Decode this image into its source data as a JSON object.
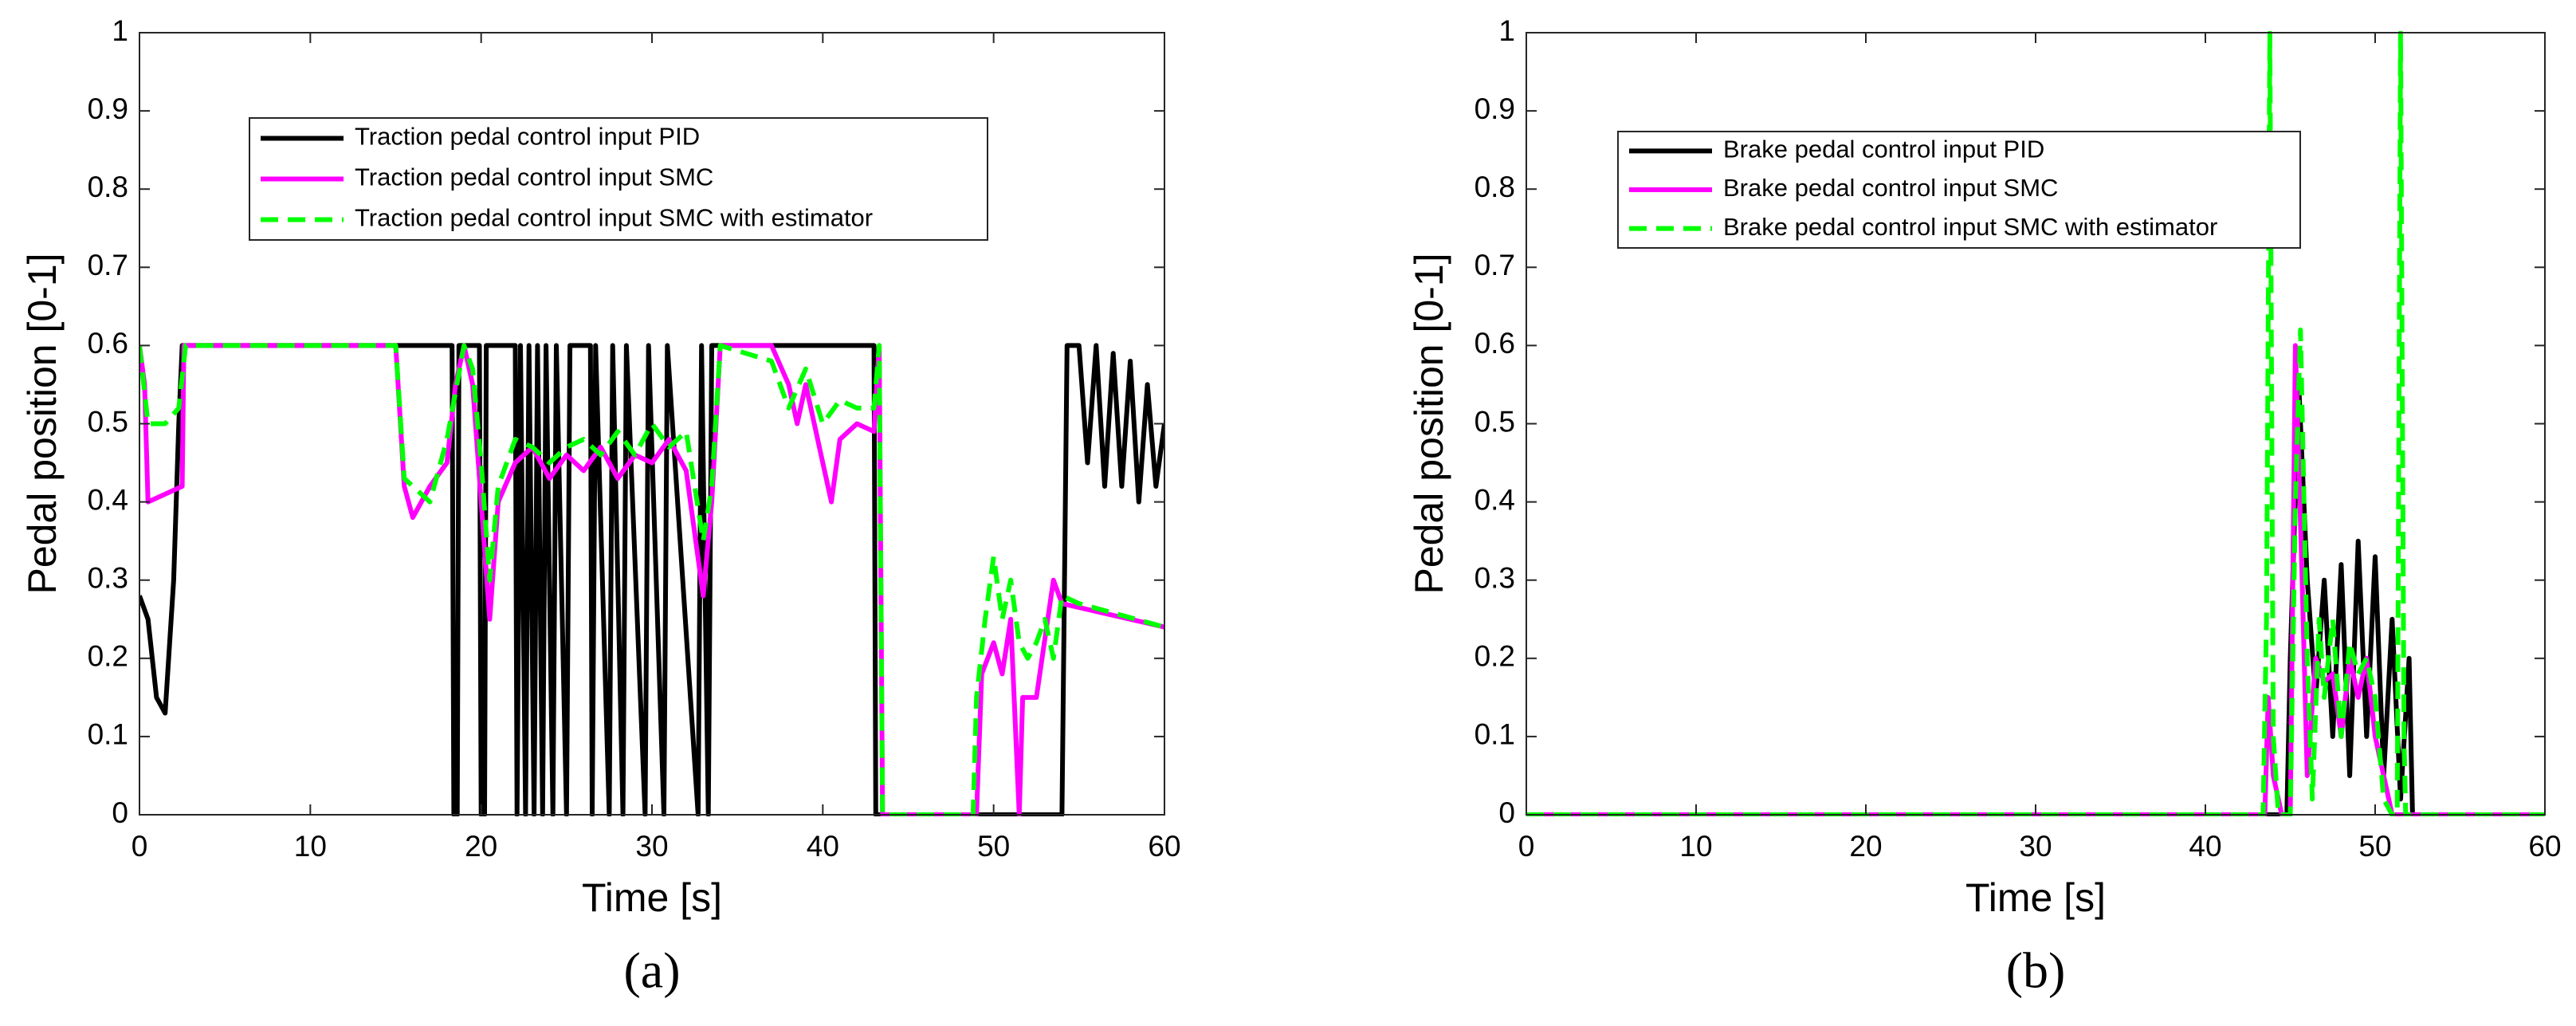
{
  "chart_data": [
    {
      "type": "line",
      "caption": "(a)",
      "xlabel": "Time [s]",
      "ylabel": "Pedal position [0-1]",
      "xlim": [
        0,
        60
      ],
      "ylim": [
        0,
        1
      ],
      "xticks": [
        0,
        10,
        20,
        30,
        40,
        50,
        60
      ],
      "yticks": [
        0,
        0.1,
        0.2,
        0.3,
        0.4,
        0.5,
        0.6,
        0.7,
        0.8,
        0.9,
        1
      ],
      "series": [
        {
          "name": "Traction pedal control input PID",
          "color": "#000000",
          "dashed": false,
          "x": [
            0,
            0.5,
            1,
            1.5,
            2,
            2.3,
            2.5,
            18.3,
            18.4,
            18.6,
            18.7,
            19.9,
            20,
            20.2,
            20.3,
            22,
            22.1,
            22.3,
            22.6,
            22.8,
            23.1,
            23.3,
            23.6,
            23.8,
            24.2,
            24.4,
            25,
            25.2,
            26.4,
            26.5,
            26.7,
            27.5,
            27.7,
            28.3,
            28.5,
            29.6,
            29.8,
            30.7,
            30.9,
            32.7,
            32.9,
            33.3,
            33.5,
            43,
            43.1,
            54,
            54.3,
            55,
            55.5,
            56,
            56.5,
            57,
            57.5,
            58,
            58.5,
            59,
            59.5,
            60
          ],
          "values": [
            0.28,
            0.25,
            0.15,
            0.13,
            0.3,
            0.5,
            0.6,
            0.6,
            0,
            0,
            0.6,
            0.6,
            0,
            0,
            0.6,
            0.6,
            0,
            0.6,
            0,
            0.6,
            0,
            0.6,
            0,
            0.6,
            0,
            0.6,
            0,
            0.6,
            0.6,
            0,
            0.6,
            0,
            0.6,
            0,
            0.6,
            0,
            0.6,
            0,
            0.6,
            0,
            0.6,
            0,
            0.6,
            0.6,
            0,
            0,
            0.6,
            0.6,
            0.45,
            0.6,
            0.42,
            0.59,
            0.42,
            0.58,
            0.4,
            0.55,
            0.42,
            0.5
          ]
        },
        {
          "name": "Traction pedal control input SMC",
          "color": "#ff00ff",
          "dashed": false,
          "x": [
            0,
            0.3,
            0.5,
            1.5,
            2.5,
            2.6,
            15,
            15.5,
            16,
            17,
            18,
            18.5,
            19,
            19.5,
            20,
            20.5,
            21,
            22,
            23,
            24,
            25,
            26,
            27,
            28,
            29,
            30,
            31,
            32,
            33,
            33.5,
            34,
            37,
            38,
            38.5,
            39,
            40,
            40.5,
            41,
            42,
            43,
            43.3,
            43.5,
            49,
            49.3,
            50,
            50.5,
            51,
            51.5,
            51.7,
            52.5,
            53.5,
            54,
            60
          ],
          "values": [
            0.6,
            0.55,
            0.4,
            0.41,
            0.42,
            0.6,
            0.6,
            0.42,
            0.38,
            0.42,
            0.45,
            0.55,
            0.6,
            0.55,
            0.4,
            0.25,
            0.4,
            0.45,
            0.47,
            0.43,
            0.46,
            0.44,
            0.47,
            0.43,
            0.46,
            0.45,
            0.48,
            0.44,
            0.28,
            0.4,
            0.6,
            0.6,
            0.55,
            0.5,
            0.55,
            0.45,
            0.4,
            0.48,
            0.5,
            0.49,
            0.6,
            0,
            0,
            0.18,
            0.22,
            0.18,
            0.25,
            0,
            0.15,
            0.15,
            0.3,
            0.27,
            0.24
          ]
        },
        {
          "name": "Traction pedal control input SMC with estimator",
          "color": "#00ff00",
          "dashed": true,
          "x": [
            0,
            0.5,
            1.5,
            2.3,
            2.7,
            15,
            15.5,
            17,
            18,
            19,
            19.5,
            20,
            20.5,
            21,
            22,
            23,
            24,
            25,
            26,
            27,
            28,
            29,
            30,
            31,
            32,
            33,
            33.5,
            34,
            37,
            38,
            39,
            40,
            41,
            42,
            43,
            43.3,
            43.5,
            48.8,
            49,
            49.5,
            50,
            50.5,
            51,
            51.5,
            52,
            52.5,
            53,
            53.5,
            54,
            55,
            60
          ],
          "values": [
            0.6,
            0.5,
            0.5,
            0.52,
            0.6,
            0.6,
            0.43,
            0.4,
            0.48,
            0.6,
            0.57,
            0.45,
            0.3,
            0.42,
            0.48,
            0.47,
            0.45,
            0.47,
            0.48,
            0.46,
            0.49,
            0.46,
            0.5,
            0.47,
            0.49,
            0.35,
            0.42,
            0.6,
            0.58,
            0.52,
            0.57,
            0.5,
            0.53,
            0.52,
            0.52,
            0.6,
            0,
            0,
            0.15,
            0.25,
            0.33,
            0.25,
            0.3,
            0.22,
            0.2,
            0.22,
            0.25,
            0.2,
            0.28,
            0.27,
            0.24
          ]
        }
      ]
    },
    {
      "type": "line",
      "caption": "(b)",
      "xlabel": "Time [s]",
      "ylabel": "Pedal position [0-1]",
      "xlim": [
        0,
        60
      ],
      "ylim": [
        0,
        1
      ],
      "xticks": [
        0,
        10,
        20,
        30,
        40,
        50,
        60
      ],
      "yticks": [
        0,
        0.1,
        0.2,
        0.3,
        0.4,
        0.5,
        0.6,
        0.7,
        0.8,
        0.9,
        1
      ],
      "series": [
        {
          "name": "Brake pedal control input PID",
          "color": "#000000",
          "dashed": false,
          "x": [
            0,
            44.8,
            45,
            45.5,
            46,
            46.5,
            47,
            47.5,
            48,
            48.5,
            49,
            49.5,
            50,
            50.5,
            51,
            51.5,
            52,
            52.2,
            60
          ],
          "values": [
            0,
            0,
            0.2,
            0.55,
            0.3,
            0.15,
            0.3,
            0.1,
            0.32,
            0.05,
            0.35,
            0.1,
            0.33,
            0.05,
            0.25,
            0.02,
            0.2,
            0,
            0
          ]
        },
        {
          "name": "Brake pedal control input SMC",
          "color": "#ff00ff",
          "dashed": false,
          "x": [
            0,
            43.5,
            43.7,
            44,
            44.5,
            45,
            45.3,
            45.7,
            46,
            46.5,
            47,
            47.5,
            48,
            48.5,
            49,
            49.5,
            50,
            50.5,
            51,
            60
          ],
          "values": [
            0,
            0,
            0.15,
            0.05,
            0,
            0,
            0.6,
            0.3,
            0.05,
            0.2,
            0.17,
            0.18,
            0.1,
            0.2,
            0.15,
            0.2,
            0.1,
            0.05,
            0,
            0
          ]
        },
        {
          "name": "Brake pedal control input SMC with estimator",
          "color": "#00ff00",
          "dashed": true,
          "x": [
            0,
            43.4,
            43.6,
            43.8,
            44,
            44.3,
            45,
            45.3,
            45.6,
            46,
            46.3,
            46.7,
            47,
            47.5,
            48,
            48.5,
            49,
            49.5,
            50,
            50.5,
            51,
            51.3,
            51.5,
            51.7,
            51.8,
            60
          ],
          "values": [
            0,
            0,
            0.25,
            1,
            0.1,
            0,
            0,
            0.4,
            0.62,
            0.2,
            0.02,
            0.25,
            0.15,
            0.25,
            0.1,
            0.22,
            0.18,
            0.2,
            0.15,
            0.02,
            0,
            0,
            1,
            0.1,
            0,
            0
          ]
        }
      ]
    }
  ]
}
